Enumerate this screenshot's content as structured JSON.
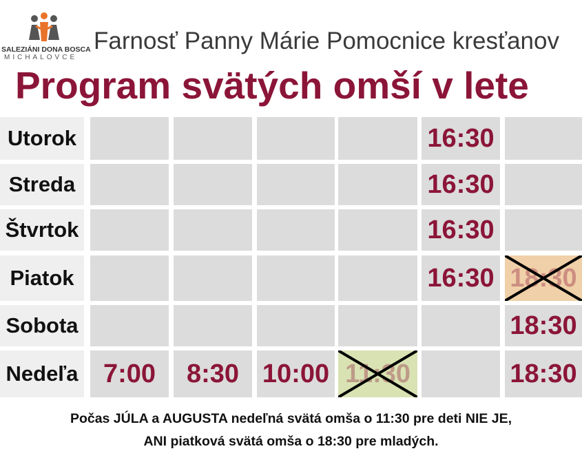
{
  "header": {
    "org": "SALEZIÁNI DONA BOSCA",
    "city": "MICHALOVCE",
    "parish": "Farnosť Panny Márie Pomocnice kresťanov",
    "title": "Program svätých omší v lete"
  },
  "table": {
    "rows": [
      {
        "day": "Utorok",
        "cells": [
          null,
          null,
          null,
          null,
          {
            "text": "16:30",
            "crossed": false
          },
          null
        ]
      },
      {
        "day": "Streda",
        "cells": [
          null,
          null,
          null,
          null,
          {
            "text": "16:30",
            "crossed": false
          },
          null
        ]
      },
      {
        "day": "Štvrtok",
        "cells": [
          null,
          null,
          null,
          null,
          {
            "text": "16:30",
            "crossed": false
          },
          null
        ]
      },
      {
        "day": "Piatok",
        "cells": [
          null,
          null,
          null,
          null,
          {
            "text": "16:30",
            "crossed": false
          },
          {
            "text": "18:30",
            "crossed": true
          }
        ]
      },
      {
        "day": "Sobota",
        "cells": [
          null,
          null,
          null,
          null,
          null,
          {
            "text": "18:30",
            "crossed": false
          }
        ]
      },
      {
        "day": "Nedeľa",
        "cells": [
          {
            "text": "7:00",
            "crossed": false
          },
          {
            "text": "8:30",
            "crossed": false
          },
          {
            "text": "10:00",
            "crossed": false
          },
          {
            "text": "11:30",
            "crossed": true
          },
          null,
          {
            "text": "18:30",
            "crossed": false
          }
        ]
      }
    ]
  },
  "footer": {
    "line1": "Počas JÚLA a AUGUSTA nedeľná svätá omša o 11:30 pre deti NIE JE,",
    "line2": "ANI piatková svätá omša o 18:30 pre mladých."
  }
}
